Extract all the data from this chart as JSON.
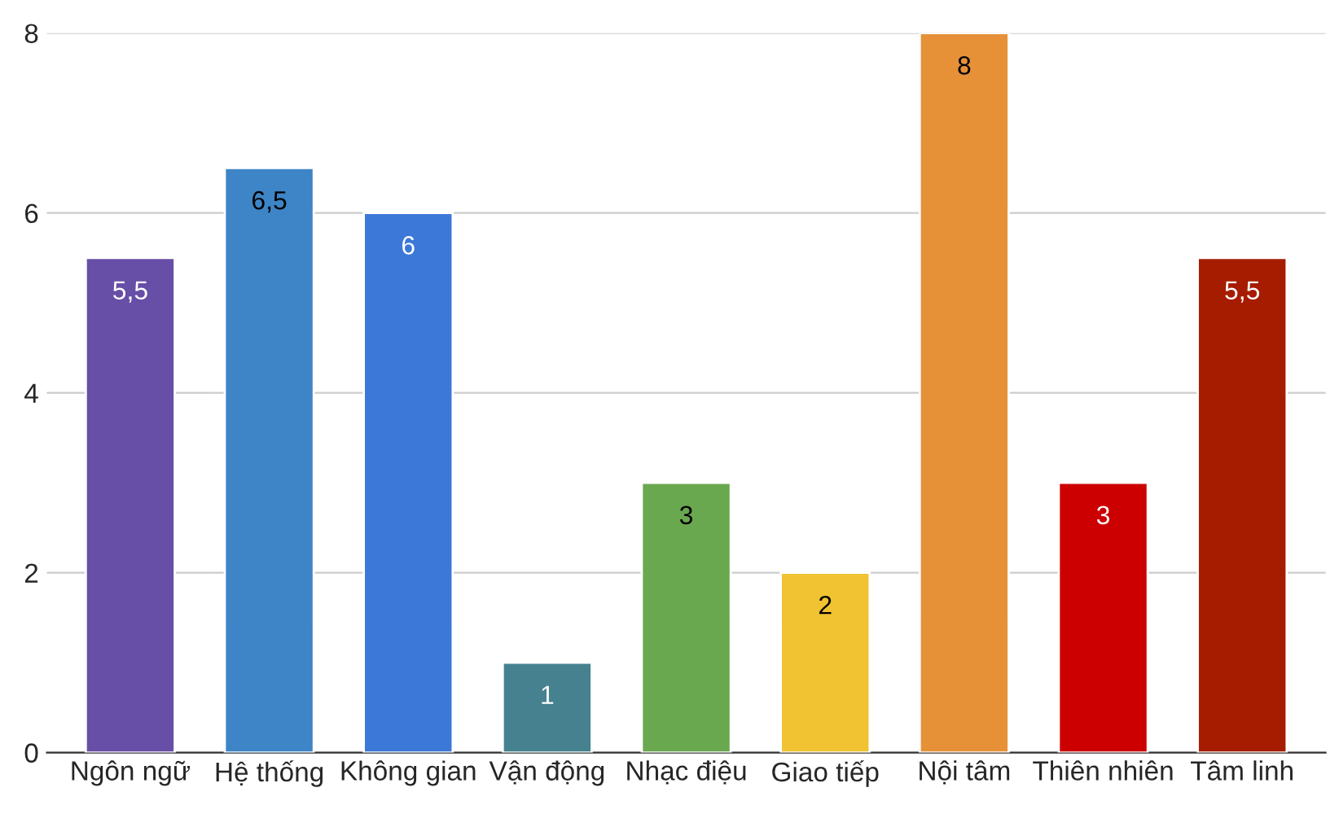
{
  "chart_data": {
    "type": "bar",
    "categories": [
      "Ngôn ngữ",
      "Hệ thống",
      "Không gian",
      "Vận động",
      "Nhạc điệu",
      "Giao tiếp",
      "Nội tâm",
      "Thiên nhiên",
      "Tâm linh"
    ],
    "values": [
      5.5,
      6.5,
      6,
      1,
      3,
      2,
      8,
      3,
      5.5
    ],
    "value_labels": [
      "5,5",
      "6,5",
      "6",
      "1",
      "3",
      "2",
      "8",
      "3",
      "5,5"
    ],
    "colors": [
      "#674ea7",
      "#3d85c6",
      "#3c78d8",
      "#45818e",
      "#6aa84f",
      "#f1c232",
      "#e69138",
      "#cc0000",
      "#a61c00"
    ],
    "ylim": [
      0,
      8
    ],
    "yticks": [
      0,
      2,
      4,
      6,
      8
    ],
    "grid": "y"
  }
}
